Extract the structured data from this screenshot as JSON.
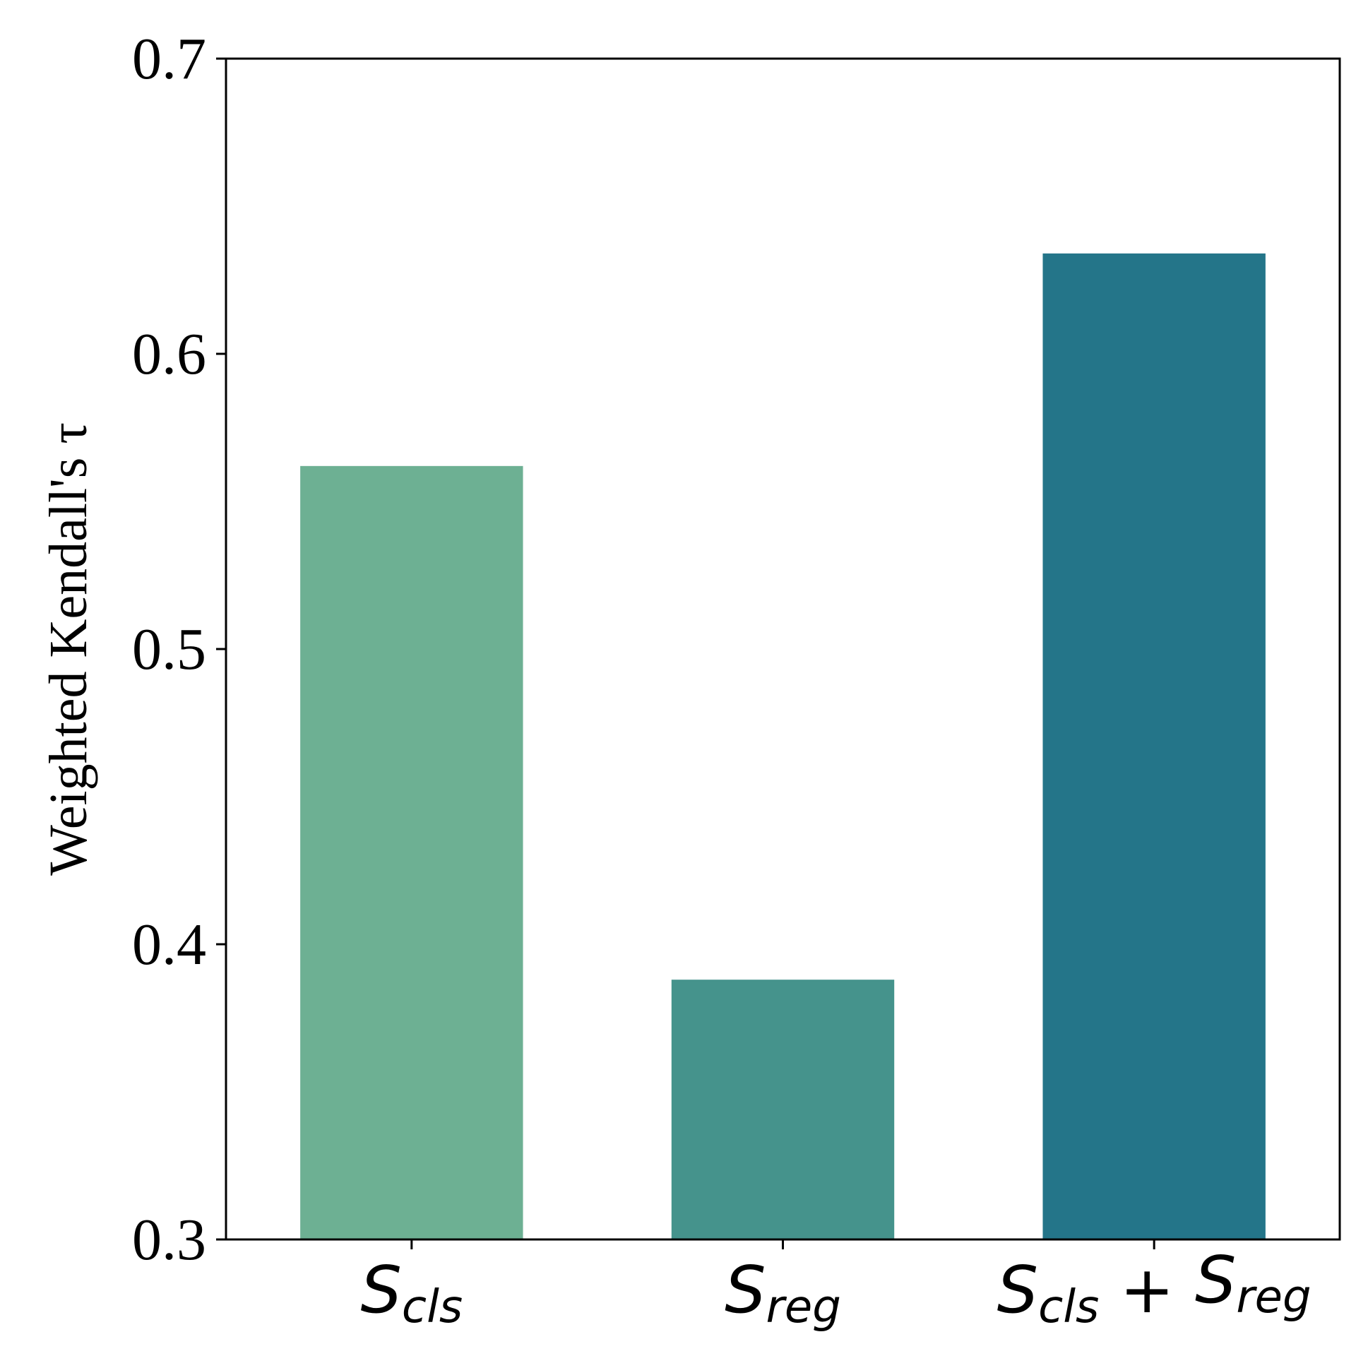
{
  "chart_data": {
    "type": "bar",
    "categories": [
      {
        "parts": [
          {
            "text": "S",
            "sub": "cls"
          }
        ]
      },
      {
        "parts": [
          {
            "text": "S",
            "sub": "reg"
          }
        ]
      },
      {
        "parts": [
          {
            "text": "S",
            "sub": "cls"
          },
          {
            "op": "+"
          },
          {
            "text": "S",
            "sub": "reg"
          }
        ]
      }
    ],
    "values": [
      0.562,
      0.388,
      0.634
    ],
    "colors": [
      "#6db093",
      "#45938c",
      "#247589"
    ],
    "ylabel": "Weighted Kendall's τ",
    "xlabel": "",
    "title": "",
    "ylim": [
      0.3,
      0.7
    ],
    "yticks": [
      "0.3",
      "0.4",
      "0.5",
      "0.6",
      "0.7"
    ],
    "grid": false
  }
}
